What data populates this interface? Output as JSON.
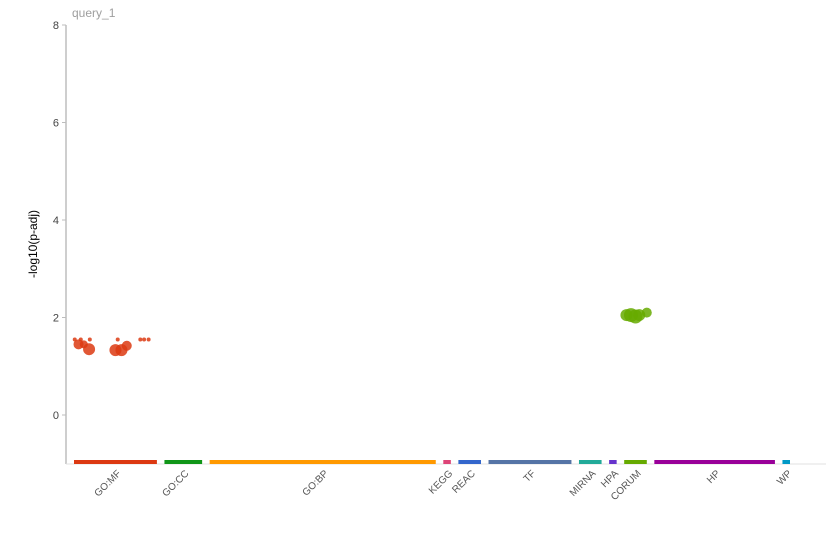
{
  "chart_data": {
    "type": "scatter",
    "title": "query_1",
    "ylabel": "-log10(p-adj)",
    "ylim": [
      -1,
      8
    ],
    "yticks": [
      0,
      2,
      4,
      6,
      8
    ],
    "sources": [
      {
        "name": "GO:MF",
        "color": "#dc3912",
        "x_range": [
          0,
          11
        ]
      },
      {
        "name": "GO:CC",
        "color": "#109618",
        "x_range": [
          12,
          17
        ]
      },
      {
        "name": "GO:BP",
        "color": "#ff9900",
        "x_range": [
          18,
          48
        ]
      },
      {
        "name": "KEGG",
        "color": "#dd4477",
        "x_range": [
          49,
          50
        ]
      },
      {
        "name": "REAC",
        "color": "#3366cc",
        "x_range": [
          51,
          54
        ]
      },
      {
        "name": "TF",
        "color": "#5574a6",
        "x_range": [
          55,
          66
        ]
      },
      {
        "name": "MIRNA",
        "color": "#22aa99",
        "x_range": [
          67,
          70
        ]
      },
      {
        "name": "HPA",
        "color": "#6633cc",
        "x_range": [
          71,
          72
        ]
      },
      {
        "name": "CORUM",
        "color": "#66aa00",
        "x_range": [
          73,
          76
        ]
      },
      {
        "name": "HP",
        "color": "#990099",
        "x_range": [
          77,
          93
        ]
      },
      {
        "name": "WP",
        "color": "#0099c6",
        "x_range": [
          94,
          95
        ]
      }
    ],
    "points": [
      {
        "source": "GO:MF",
        "x": 0.1,
        "y": 1.55,
        "size": 2
      },
      {
        "source": "GO:MF",
        "x": 0.6,
        "y": 1.45,
        "size": 5
      },
      {
        "source": "GO:MF",
        "x": 0.9,
        "y": 1.55,
        "size": 2
      },
      {
        "source": "GO:MF",
        "x": 1.3,
        "y": 1.45,
        "size": 4
      },
      {
        "source": "GO:MF",
        "x": 2.0,
        "y": 1.35,
        "size": 6
      },
      {
        "source": "GO:MF",
        "x": 2.1,
        "y": 1.55,
        "size": 2
      },
      {
        "source": "GO:MF",
        "x": 5.5,
        "y": 1.33,
        "size": 6
      },
      {
        "source": "GO:MF",
        "x": 5.8,
        "y": 1.55,
        "size": 2
      },
      {
        "source": "GO:MF",
        "x": 6.3,
        "y": 1.33,
        "size": 6
      },
      {
        "source": "GO:MF",
        "x": 7.0,
        "y": 1.42,
        "size": 5
      },
      {
        "source": "GO:MF",
        "x": 8.8,
        "y": 1.55,
        "size": 2
      },
      {
        "source": "GO:MF",
        "x": 9.3,
        "y": 1.55,
        "size": 2
      },
      {
        "source": "GO:MF",
        "x": 9.9,
        "y": 1.55,
        "size": 2
      },
      {
        "source": "CORUM",
        "x": 73.3,
        "y": 2.05,
        "size": 6
      },
      {
        "source": "CORUM",
        "x": 73.9,
        "y": 2.05,
        "size": 7
      },
      {
        "source": "CORUM",
        "x": 74.5,
        "y": 2.02,
        "size": 7
      },
      {
        "source": "CORUM",
        "x": 75.0,
        "y": 2.05,
        "size": 6
      },
      {
        "source": "CORUM",
        "x": 76.0,
        "y": 2.1,
        "size": 5
      }
    ]
  }
}
